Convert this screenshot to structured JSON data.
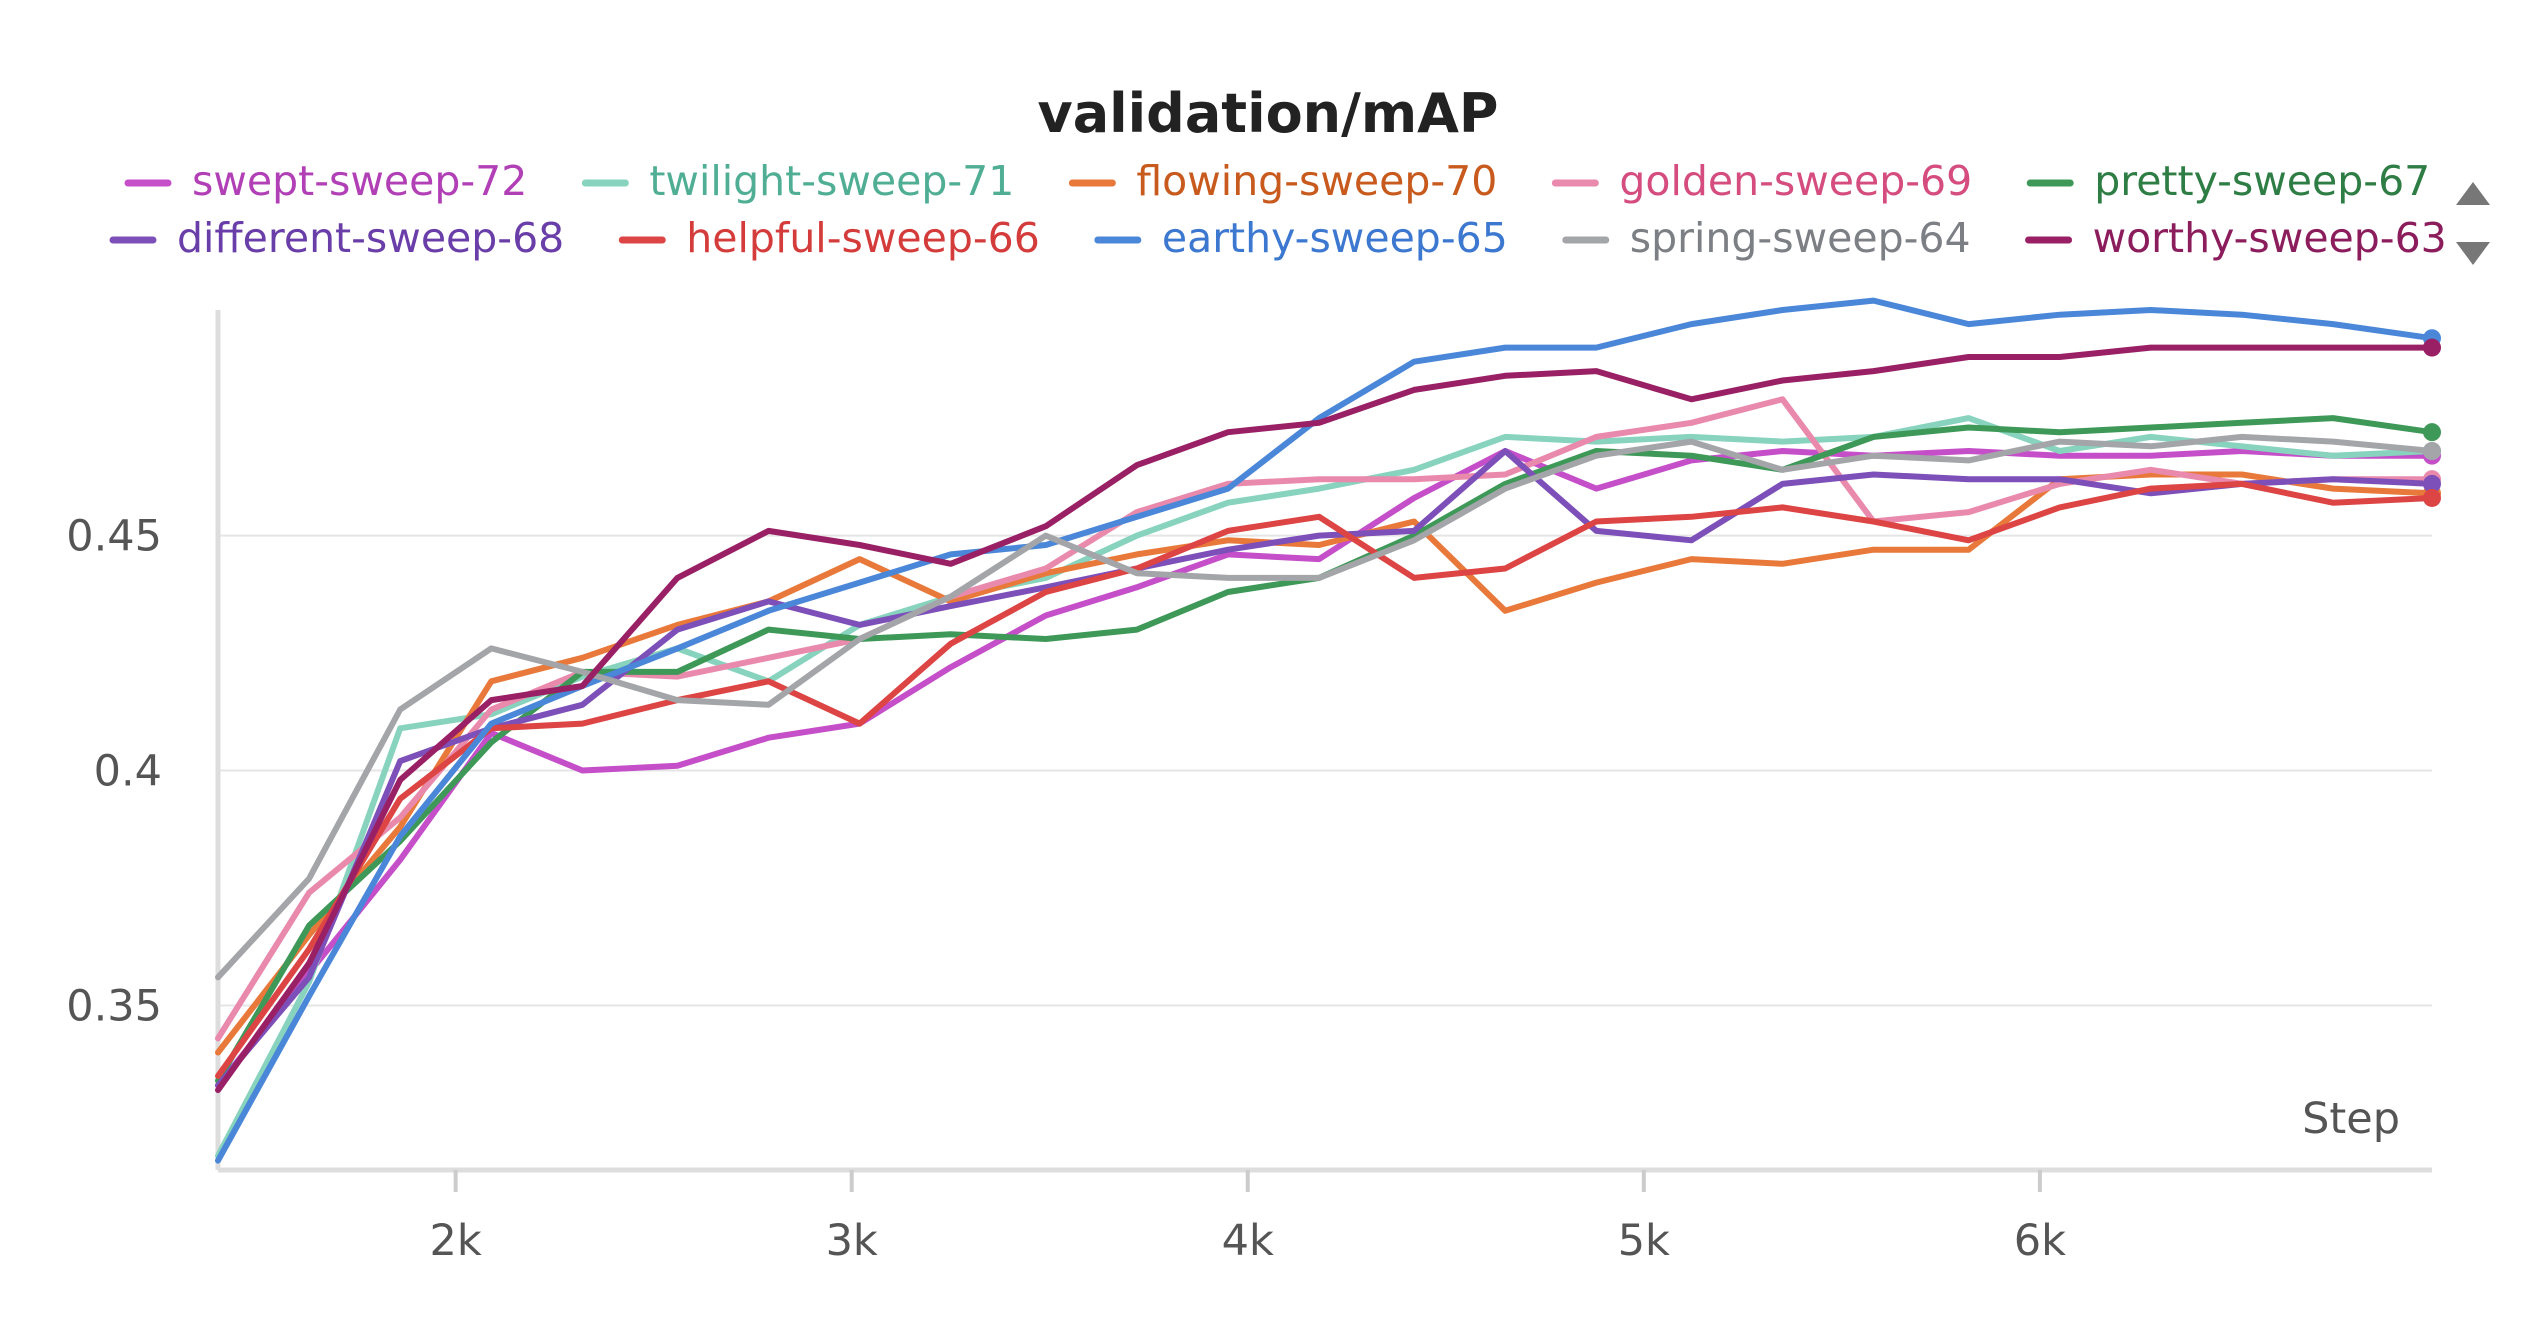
{
  "chart_data": {
    "type": "line",
    "title": "validation/mAP",
    "xlabel": "Step",
    "ylabel": "",
    "xlim": [
      1400,
      6990
    ],
    "ylim": [
      0.315,
      0.498
    ],
    "x_ticks": [
      {
        "value": 2000,
        "label": "2k"
      },
      {
        "value": 3000,
        "label": "3k"
      },
      {
        "value": 4000,
        "label": "4k"
      },
      {
        "value": 5000,
        "label": "5k"
      },
      {
        "value": 6000,
        "label": "6k"
      }
    ],
    "y_ticks": [
      {
        "value": 0.35,
        "label": "0.35"
      },
      {
        "value": 0.4,
        "label": "0.4"
      },
      {
        "value": 0.45,
        "label": "0.45"
      }
    ],
    "grid": true,
    "legend_position": "top",
    "x": [
      1400,
      1630,
      1860,
      2090,
      2320,
      2560,
      2790,
      3020,
      3250,
      3490,
      3720,
      3950,
      4180,
      4420,
      4650,
      4880,
      5120,
      5350,
      5580,
      5820,
      6050,
      6280,
      6510,
      6740,
      6990
    ],
    "series": [
      {
        "name": "swept-sweep-72",
        "color": "#c54ec9",
        "label_color": "#b13fb5",
        "values": [
          0.333,
          0.357,
          0.381,
          0.408,
          0.4,
          0.401,
          0.407,
          0.41,
          0.422,
          0.433,
          0.439,
          0.446,
          0.445,
          0.458,
          0.468,
          0.46,
          0.466,
          0.468,
          0.467,
          0.468,
          0.467,
          0.467,
          0.468,
          0.467,
          0.467
        ]
      },
      {
        "name": "twilight-sweep-71",
        "color": "#87d3bd",
        "label_color": "#4fae93",
        "values": [
          0.318,
          0.355,
          0.409,
          0.412,
          0.42,
          0.426,
          0.419,
          0.431,
          0.437,
          0.441,
          0.45,
          0.457,
          0.46,
          0.464,
          0.471,
          0.47,
          0.471,
          0.47,
          0.471,
          0.475,
          0.468,
          0.471,
          0.469,
          0.467,
          0.468
        ]
      },
      {
        "name": "flowing-sweep-70",
        "color": "#e8793a",
        "label_color": "#c75a1c",
        "values": [
          0.34,
          0.365,
          0.388,
          0.419,
          0.424,
          0.431,
          0.436,
          0.445,
          0.436,
          0.442,
          0.446,
          0.449,
          0.448,
          0.453,
          0.434,
          0.44,
          0.445,
          0.444,
          0.447,
          0.447,
          0.462,
          0.463,
          0.463,
          0.46,
          0.459
        ]
      },
      {
        "name": "golden-sweep-69",
        "color": "#e98aad",
        "label_color": "#d54d7f",
        "values": [
          0.343,
          0.374,
          0.39,
          0.413,
          0.421,
          0.42,
          0.424,
          0.428,
          0.437,
          0.443,
          0.455,
          0.461,
          0.462,
          0.462,
          0.463,
          0.471,
          0.474,
          0.479,
          0.453,
          0.455,
          0.461,
          0.464,
          0.461,
          0.462,
          0.462
        ]
      },
      {
        "name": "pretty-sweep-67",
        "color": "#3e9858",
        "label_color": "#2e7d45",
        "values": [
          0.334,
          0.367,
          0.385,
          0.406,
          0.421,
          0.421,
          0.43,
          0.428,
          0.429,
          0.428,
          0.43,
          0.438,
          0.441,
          0.45,
          0.461,
          0.468,
          0.467,
          0.464,
          0.471,
          0.473,
          0.472,
          0.473,
          0.474,
          0.475,
          0.472
        ]
      },
      {
        "name": "different-sweep-68",
        "color": "#7d4fb9",
        "label_color": "#6a3ea8",
        "values": [
          0.333,
          0.356,
          0.402,
          0.409,
          0.414,
          0.43,
          0.436,
          0.431,
          0.435,
          0.439,
          0.443,
          0.447,
          0.45,
          0.451,
          0.468,
          0.451,
          0.449,
          0.461,
          0.463,
          0.462,
          0.462,
          0.459,
          0.461,
          0.462,
          0.461
        ]
      },
      {
        "name": "helpful-sweep-66",
        "color": "#dd4444",
        "label_color": "#d43c3c",
        "values": [
          0.335,
          0.362,
          0.394,
          0.409,
          0.41,
          0.415,
          0.419,
          0.41,
          0.427,
          0.438,
          0.443,
          0.451,
          0.454,
          0.441,
          0.443,
          0.453,
          0.454,
          0.456,
          0.453,
          0.449,
          0.456,
          0.46,
          0.461,
          0.457,
          0.458
        ]
      },
      {
        "name": "earthy-sweep-65",
        "color": "#4a87d8",
        "label_color": "#3c78cf",
        "values": [
          0.317,
          0.352,
          0.386,
          0.41,
          0.418,
          0.426,
          0.434,
          0.44,
          0.446,
          0.448,
          0.454,
          0.46,
          0.475,
          0.487,
          0.49,
          0.49,
          0.495,
          0.498,
          0.5,
          0.495,
          0.497,
          0.498,
          0.497,
          0.495,
          0.492
        ]
      },
      {
        "name": "spring-sweep-64",
        "color": "#a3a5a8",
        "label_color": "#7c7f84",
        "values": [
          0.356,
          0.377,
          0.413,
          0.426,
          0.421,
          0.415,
          0.414,
          0.428,
          0.437,
          0.45,
          0.442,
          0.441,
          0.441,
          0.449,
          0.46,
          0.467,
          0.47,
          0.464,
          0.467,
          0.466,
          0.47,
          0.469,
          0.471,
          0.47,
          0.468
        ]
      },
      {
        "name": "worthy-sweep-63",
        "color": "#9a2065",
        "label_color": "#8c1d5c",
        "values": [
          0.332,
          0.359,
          0.398,
          0.415,
          0.418,
          0.441,
          0.451,
          0.448,
          0.444,
          0.452,
          0.465,
          0.472,
          0.474,
          0.481,
          0.484,
          0.485,
          0.479,
          0.483,
          0.485,
          0.488,
          0.488,
          0.49,
          0.49,
          0.49,
          0.49
        ]
      }
    ]
  },
  "legend_scroll": {
    "up_icon": "triangle-up-icon",
    "down_icon": "triangle-down-icon"
  }
}
